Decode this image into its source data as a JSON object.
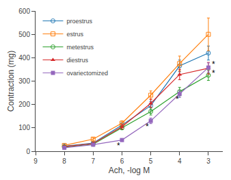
{
  "chart_data": {
    "type": "line",
    "x": [
      8,
      7,
      6,
      5,
      4,
      3
    ],
    "series": [
      {
        "name": "proestrus",
        "values": [
          22,
          35,
          112,
          195,
          365,
          420
        ],
        "yerr": [
          3,
          5,
          10,
          18,
          25,
          30
        ],
        "marker": "circle-open"
      },
      {
        "name": "estrus",
        "values": [
          25,
          52,
          120,
          240,
          375,
          500
        ],
        "yerr": [
          3,
          6,
          10,
          18,
          32,
          70
        ],
        "marker": "square-open"
      },
      {
        "name": "metestrus",
        "values": [
          18,
          30,
          100,
          170,
          255,
          325
        ],
        "yerr": [
          2,
          4,
          8,
          15,
          18,
          22
        ],
        "marker": "circle-open"
      },
      {
        "name": "diestrus",
        "values": [
          20,
          33,
          105,
          205,
          328,
          355
        ],
        "yerr": [
          3,
          5,
          10,
          18,
          22,
          25
        ],
        "marker": "triangle-up"
      },
      {
        "name": "ovariectomized",
        "values": [
          15,
          28,
          48,
          130,
          245,
          358
        ],
        "yerr": [
          2,
          3,
          6,
          12,
          15,
          20
        ],
        "marker": "square"
      }
    ],
    "annotations": [
      {
        "text": "*",
        "x": 6.12,
        "y": 23
      },
      {
        "text": "*",
        "x": 5.12,
        "y": 105
      },
      {
        "text": "*",
        "x": 4.08,
        "y": 223
      },
      {
        "text": "*",
        "x": 2.82,
        "y": 373
      },
      {
        "text": "*",
        "x": 2.82,
        "y": 333
      }
    ],
    "xlabel": "Ach, -log M",
    "ylabel": "Contraction (mg)",
    "xlim": [
      9,
      2.5
    ],
    "ylim": [
      0,
      600
    ],
    "xticks": [
      9,
      8,
      7,
      6,
      5,
      4,
      3
    ],
    "yticks": [
      0,
      100,
      200,
      300,
      400,
      500,
      600
    ],
    "grid": false,
    "legend": "upper left"
  }
}
